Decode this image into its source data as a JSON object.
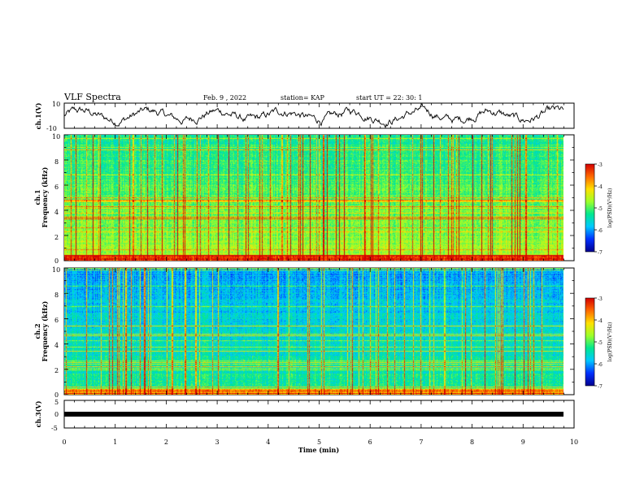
{
  "header": {
    "title": "VLF Spectra",
    "date": "Feb. 9 , 2022",
    "station": "station= KAP",
    "start": "start UT =  22: 30: 1"
  },
  "chart_data": [
    {
      "type": "line",
      "name": "ch1-waveform",
      "ylabel": "ch.1(V)",
      "ylim": [
        -10,
        10
      ],
      "ytick_labels": [
        "10",
        "-10"
      ],
      "xlim": [
        0,
        10
      ]
    },
    {
      "type": "heatmap",
      "name": "ch1-spectrogram",
      "ylabel_line1": "ch.1",
      "ylabel_line2": "Frequency (kHz)",
      "ylim": [
        0,
        10
      ],
      "ytick_labels": [
        "0",
        "2",
        "4",
        "6",
        "8",
        "10"
      ],
      "xlim": [
        0,
        9.8
      ],
      "colorbar": {
        "label": "log(PSD)(V²/Hz)",
        "range": [
          -7,
          -3
        ],
        "tick_labels": [
          "-3",
          "-4",
          "-5",
          "-6",
          "-7"
        ]
      }
    },
    {
      "type": "heatmap",
      "name": "ch2-spectrogram",
      "ylabel_line1": "ch.2",
      "ylabel_line2": "Frequency (kHz)",
      "ylim": [
        0,
        10
      ],
      "ytick_labels": [
        "0",
        "2",
        "4",
        "6",
        "8",
        "10"
      ],
      "xlim": [
        0,
        9.8
      ],
      "colorbar": {
        "label": "log(PSD)(V²/Hz)",
        "range": [
          -7,
          -3
        ],
        "tick_labels": [
          "-3",
          "-4",
          "-5",
          "-6",
          "-7"
        ]
      }
    },
    {
      "type": "line",
      "name": "ch3-trace",
      "ylabel": "ch.3(V)",
      "ylim": [
        -5,
        5
      ],
      "ytick_labels": [
        "5",
        "0",
        "-5"
      ],
      "xlim": [
        0,
        10
      ],
      "xlabel": "Time  (min)",
      "xtick_labels": [
        "0",
        "1",
        "2",
        "3",
        "4",
        "5",
        "6",
        "7",
        "8",
        "9",
        "10"
      ]
    }
  ],
  "colors": {
    "ch1_background": "#00d9a8",
    "ch2_background": "#1a3fd6",
    "colormap": [
      "#00008f",
      "#0030ff",
      "#00c8ff",
      "#00e890",
      "#9cff2a",
      "#ffe000",
      "#ff6a00",
      "#d40000",
      "#ffffff"
    ]
  }
}
